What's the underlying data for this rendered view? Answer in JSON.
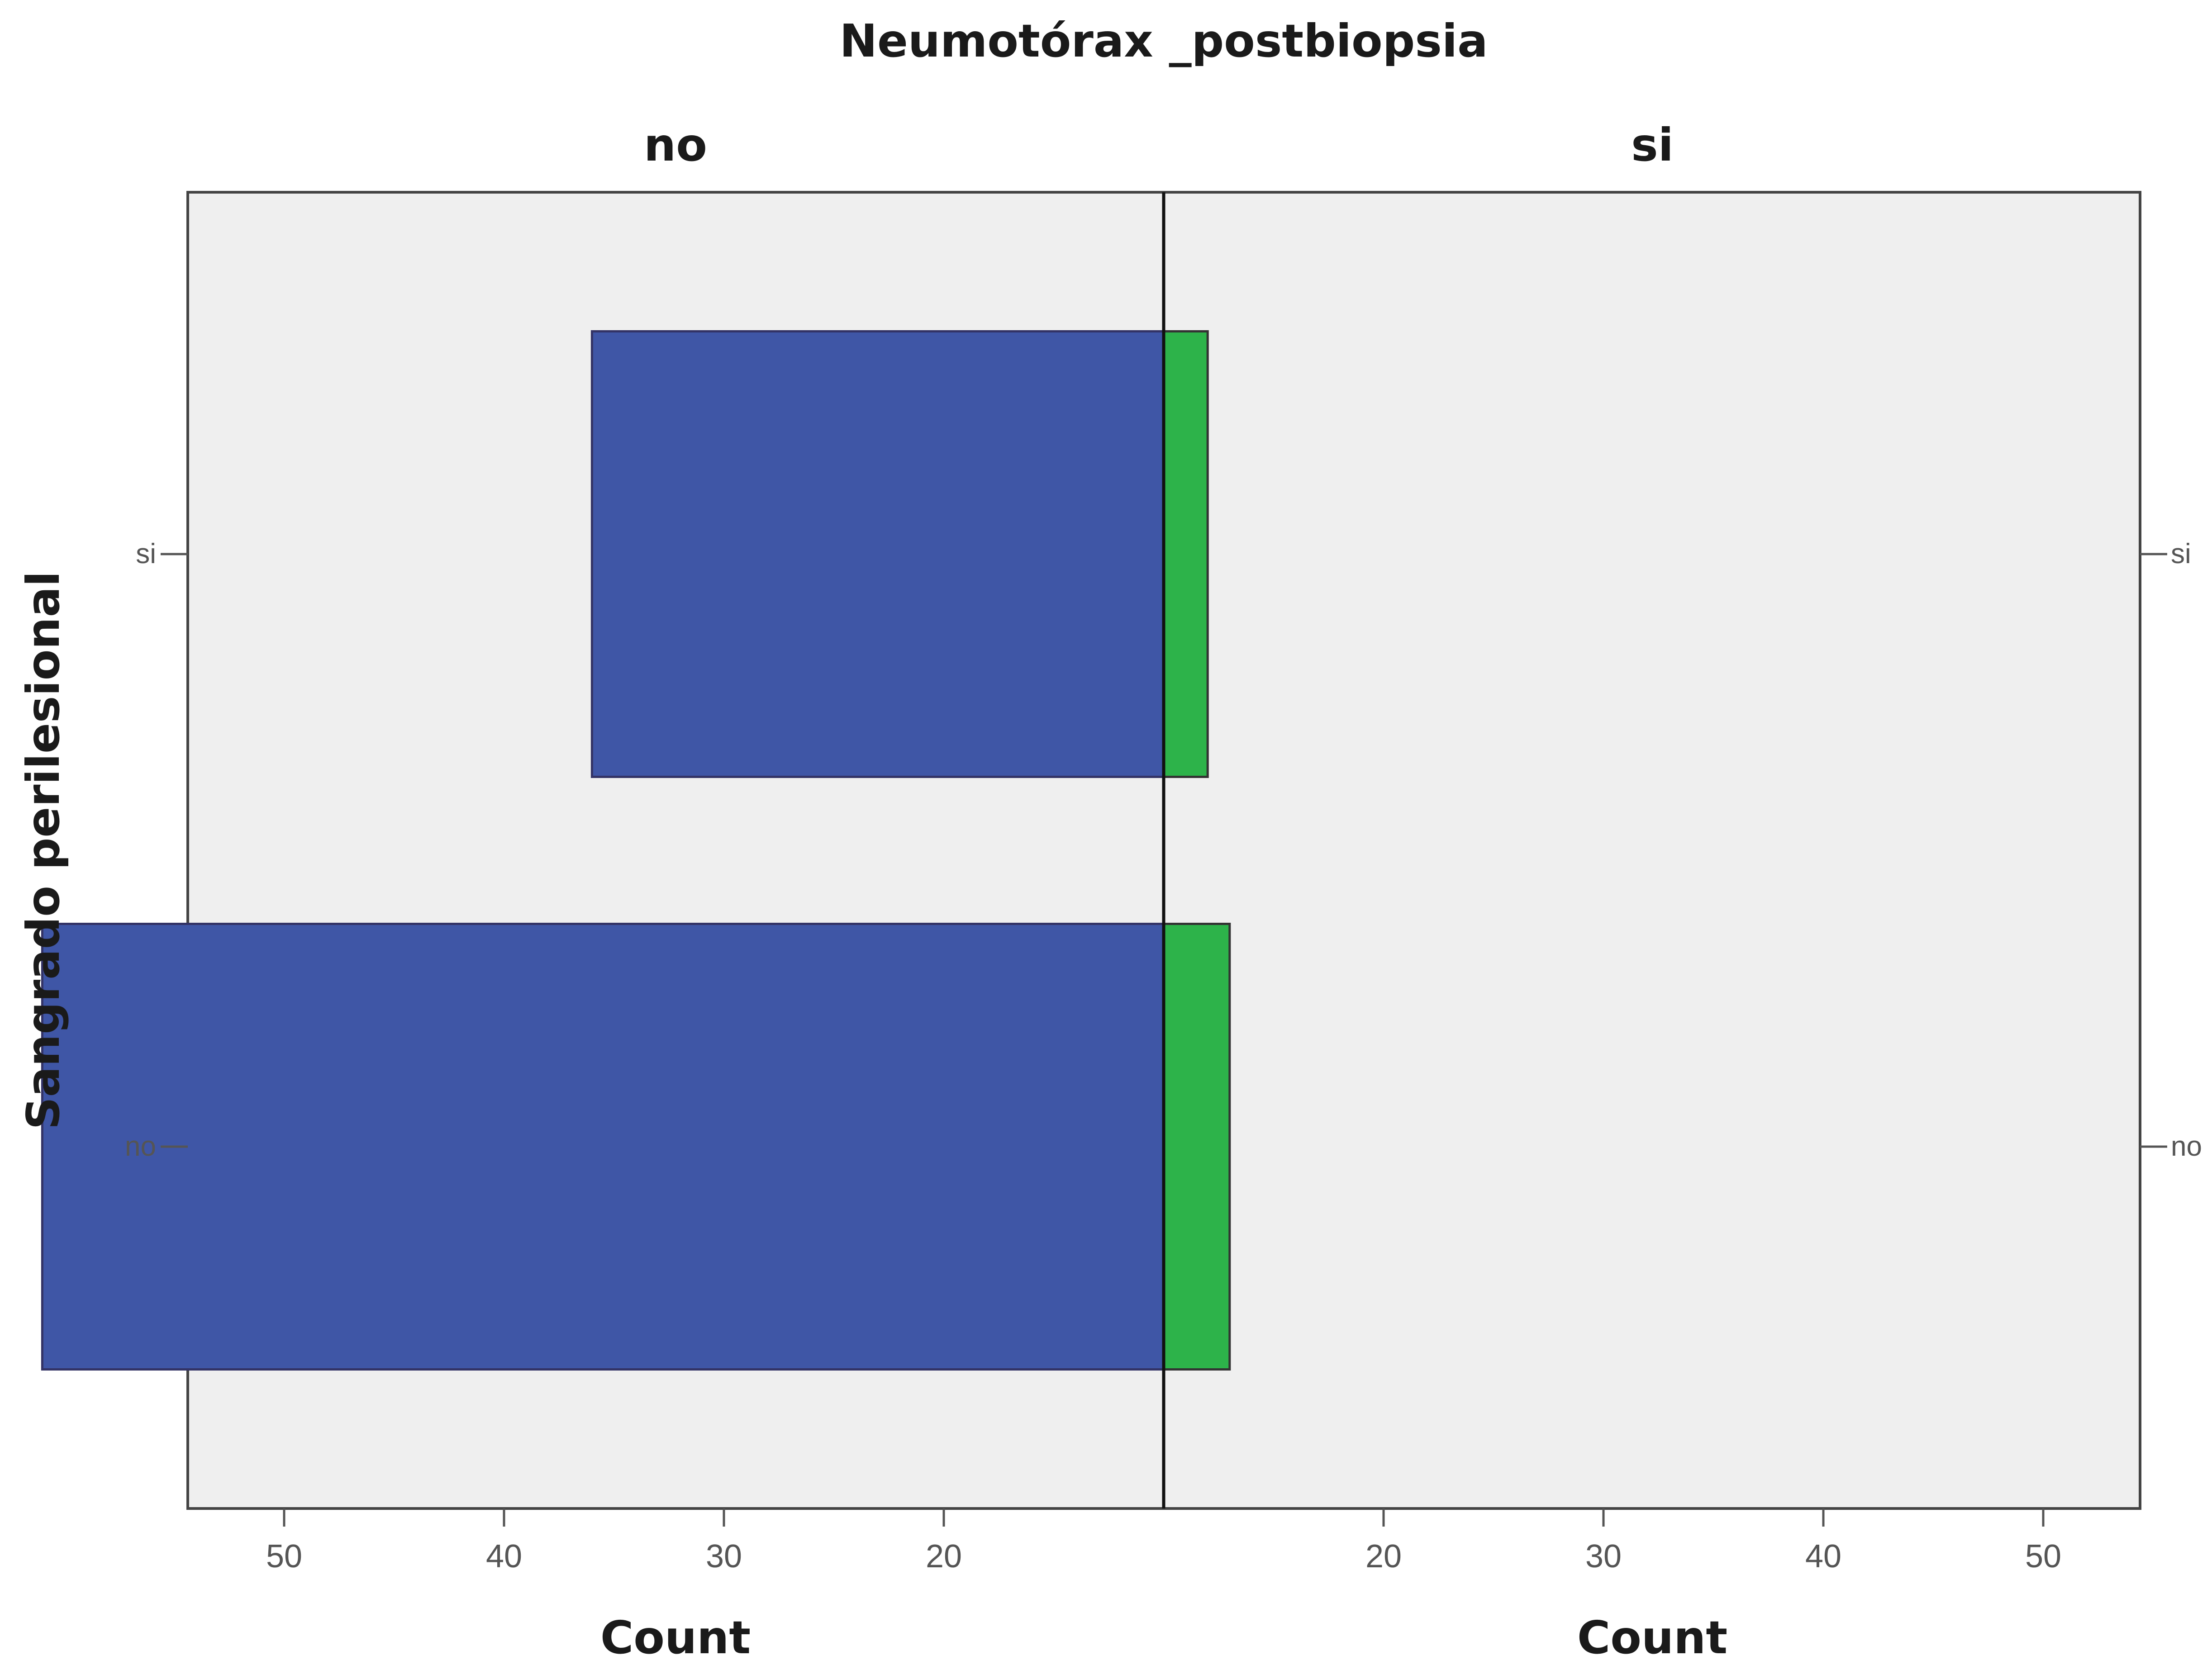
{
  "chart_data": {
    "type": "bar",
    "orientation": "horizontal",
    "layout": "back-to-back population pyramid",
    "title": "Neumotórax _postbiopsia",
    "panels": [
      "no",
      "si"
    ],
    "ylabel": "Sangrado perilesional",
    "categories": [
      "si",
      "no"
    ],
    "xlabel_left": "Count",
    "xlabel_right": "Count",
    "left_ticks": [
      "50",
      "40",
      "30",
      "20"
    ],
    "right_ticks": [
      "20",
      "30",
      "40",
      "50"
    ],
    "series": [
      {
        "name": "no",
        "values": [
          26,
          51
        ],
        "color": "#3f56a6"
      },
      {
        "name": "si",
        "values": [
          2,
          3
        ],
        "color": "#2db34a"
      }
    ],
    "background_color": "#efefef",
    "grid": false
  }
}
